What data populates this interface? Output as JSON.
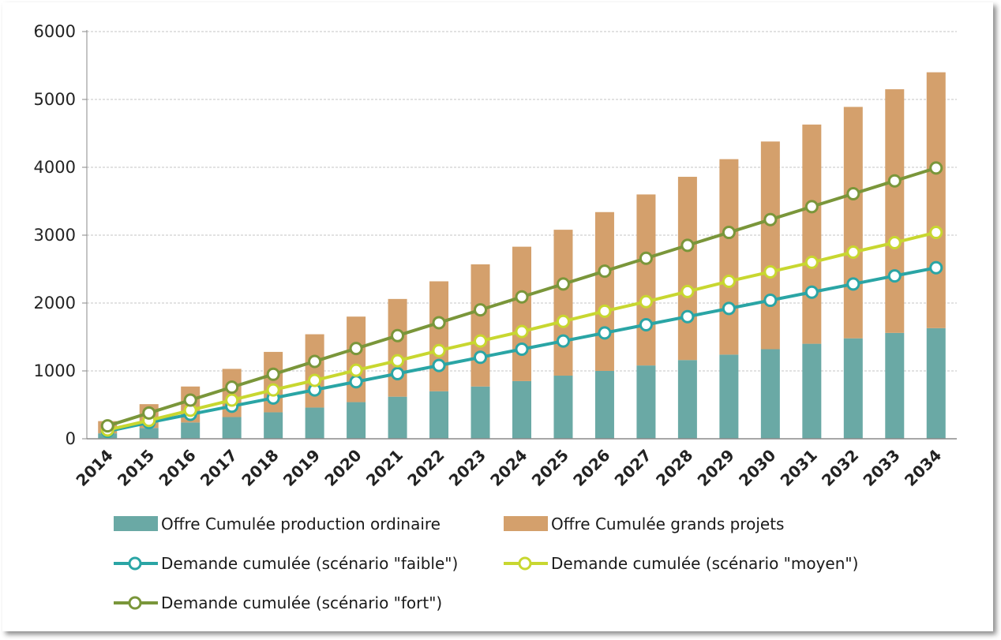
{
  "chart_data": {
    "type": "bar",
    "stacked": true,
    "categories": [
      "2014",
      "2015",
      "2016",
      "2017",
      "2018",
      "2019",
      "2020",
      "2021",
      "2022",
      "2023",
      "2024",
      "2025",
      "2026",
      "2027",
      "2028",
      "2029",
      "2030",
      "2031",
      "2032",
      "2033",
      "2034"
    ],
    "ylim": [
      0,
      6000
    ],
    "yticks": [
      "0",
      "1000",
      "2000",
      "3000",
      "4000",
      "5000",
      "6000"
    ],
    "grid": true,
    "legend_position": "bottom",
    "series": [
      {
        "name": "Offre Cumulée production ordinaire",
        "type": "bar",
        "color": "#6aa9a5",
        "values": [
          80,
          160,
          240,
          320,
          390,
          460,
          540,
          620,
          700,
          770,
          850,
          930,
          1000,
          1080,
          1160,
          1240,
          1320,
          1400,
          1480,
          1560,
          1630
        ]
      },
      {
        "name": "Offre Cumulée grands projets",
        "type": "bar",
        "color": "#d4a06c",
        "values": [
          180,
          350,
          530,
          710,
          890,
          1080,
          1260,
          1440,
          1620,
          1800,
          1980,
          2150,
          2340,
          2520,
          2700,
          2880,
          3060,
          3230,
          3410,
          3590,
          3770
        ]
      },
      {
        "name": "Demande cumulée (scénario \"faible\")",
        "type": "line",
        "color": "#2aa5a5",
        "values": [
          110,
          240,
          360,
          480,
          600,
          720,
          840,
          960,
          1080,
          1200,
          1320,
          1440,
          1560,
          1680,
          1800,
          1920,
          2040,
          2160,
          2280,
          2400,
          2520
        ]
      },
      {
        "name": "Demande cumulée (scénario \"moyen\")",
        "type": "line",
        "color": "#c8d730",
        "values": [
          130,
          270,
          420,
          570,
          720,
          860,
          1010,
          1150,
          1300,
          1440,
          1580,
          1730,
          1880,
          2020,
          2170,
          2320,
          2460,
          2600,
          2750,
          2890,
          3040
        ]
      },
      {
        "name": "Demande cumulée (scénario \"fort\")",
        "type": "line",
        "color": "#7a963a",
        "values": [
          190,
          380,
          570,
          760,
          950,
          1140,
          1330,
          1520,
          1710,
          1900,
          2090,
          2280,
          2470,
          2660,
          2850,
          3040,
          3230,
          3420,
          3610,
          3800,
          3990
        ]
      }
    ]
  }
}
